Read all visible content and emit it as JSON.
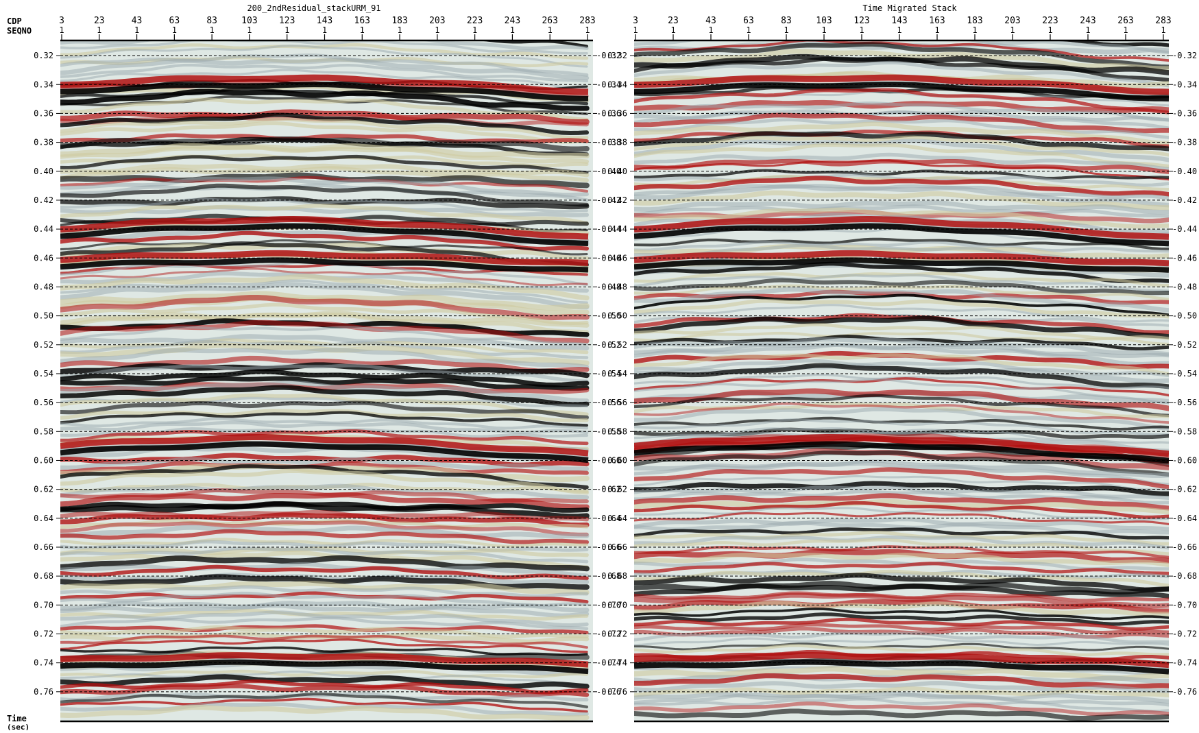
{
  "header": {
    "cdp_label": "CDP",
    "seqno_label": "SEQNO"
  },
  "footer": {
    "time_label": "Time",
    "time_unit": "(sec)"
  },
  "panels": [
    {
      "title": "200_2ndResidual_stackURM_91",
      "cdp_ticks": [
        "3",
        "23",
        "43",
        "63",
        "83",
        "103",
        "123",
        "143",
        "163",
        "183",
        "203",
        "223",
        "243",
        "263",
        "283"
      ],
      "seqno_ticks": [
        "1",
        "1",
        "1",
        "1",
        "1",
        "1",
        "1",
        "1",
        "1",
        "1",
        "1",
        "1",
        "1",
        "1",
        "1"
      ]
    },
    {
      "title": "Time Migrated Stack",
      "cdp_ticks": [
        "3",
        "23",
        "43",
        "63",
        "83",
        "103",
        "123",
        "143",
        "163",
        "183",
        "203",
        "223",
        "243",
        "263",
        "283"
      ],
      "seqno_ticks": [
        "1",
        "1",
        "1",
        "1",
        "1",
        "1",
        "1",
        "1",
        "1",
        "1",
        "1",
        "1",
        "1",
        "1",
        "1"
      ]
    }
  ],
  "time_axis": {
    "range": [
      0.31,
      0.78
    ],
    "ticks": [
      "0.32",
      "0.34",
      "0.36",
      "0.38",
      "0.40",
      "0.42",
      "0.44",
      "0.46",
      "0.48",
      "0.50",
      "0.52",
      "0.54",
      "0.56",
      "0.58",
      "0.60",
      "0.62",
      "0.64",
      "0.66",
      "0.68",
      "0.70",
      "0.72",
      "0.74",
      "0.76"
    ],
    "right_ticks": [
      "-0.32",
      "-0.34",
      "-0.36",
      "-0.38",
      "-0.40",
      "-0.42",
      "-0.44",
      "-0.46",
      "-0.48",
      "-0.50",
      "-0.52",
      "-0.54",
      "-0.56",
      "-0.58",
      "-0.60",
      "-0.62",
      "-0.64",
      "-0.66",
      "-0.68",
      "-0.70",
      "-0.72",
      "-0.74",
      "-0.76"
    ],
    "gridlines": "dashed"
  },
  "colors": {
    "positive": "#b01010",
    "negative": "#000000",
    "mid_light": "#dfe8e4",
    "tan": "#cfc9a0",
    "gray_blue": "#9aa7ad"
  }
}
